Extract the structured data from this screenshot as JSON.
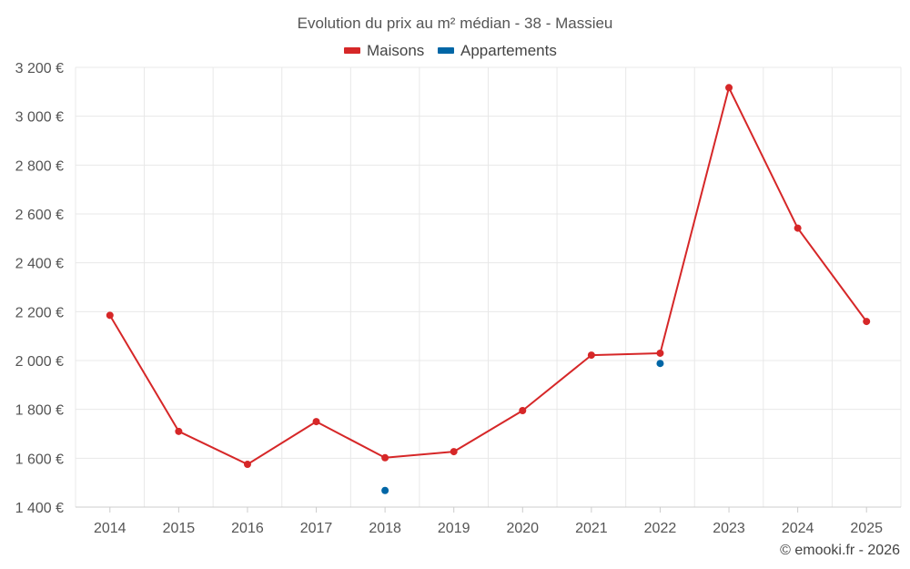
{
  "chart_data": {
    "type": "line",
    "title": "Evolution du prix au m² médian - 38 - Massieu",
    "categories": [
      "2014",
      "2015",
      "2016",
      "2017",
      "2018",
      "2019",
      "2020",
      "2021",
      "2022",
      "2023",
      "2024",
      "2025"
    ],
    "series": [
      {
        "name": "Maisons",
        "color": "#d62728",
        "values": [
          2185,
          1710,
          1575,
          1750,
          1602,
          1627,
          1795,
          2022,
          2030,
          3117,
          2542,
          2160
        ]
      },
      {
        "name": "Appartements",
        "color": "#0066a6",
        "values": [
          null,
          null,
          null,
          null,
          1468,
          null,
          null,
          null,
          1988,
          null,
          null,
          null
        ]
      }
    ],
    "ylim": [
      1400,
      3200
    ],
    "yticks": [
      1400,
      1600,
      1800,
      2000,
      2200,
      2400,
      2600,
      2800,
      3000,
      3200
    ],
    "ytick_labels": [
      "1 400 €",
      "1 600 €",
      "1 800 €",
      "2 000 €",
      "2 200 €",
      "2 400 €",
      "2 600 €",
      "2 800 €",
      "3 000 €",
      "3 200 €"
    ],
    "legend_position": "top-center",
    "grid": true,
    "credit": "© emooki.fr - 2026"
  }
}
